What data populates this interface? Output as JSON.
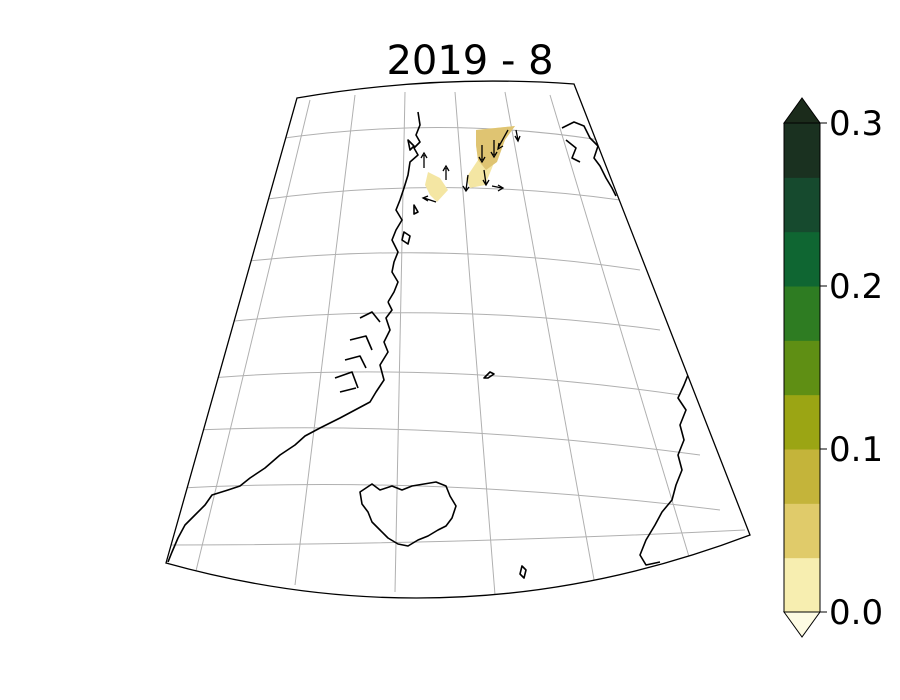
{
  "title": "2019 - 8",
  "colorbar": {
    "min": 0.0,
    "max": 0.3,
    "extend": "both",
    "tick_labels": [
      "0.0",
      "0.1",
      "0.2",
      "0.3"
    ],
    "tick_values": [
      0.0,
      0.1,
      0.2,
      0.3
    ],
    "levels": [
      0.0,
      0.033,
      0.067,
      0.1,
      0.133,
      0.167,
      0.2,
      0.233,
      0.267,
      0.3
    ],
    "colors": [
      "#f7eeb0",
      "#e0cb6a",
      "#c4b43a",
      "#9ba514",
      "#5f8f14",
      "#2e7c22",
      "#0f6632",
      "#164a2e",
      "#1a3120"
    ],
    "under_color": "#fdfbe3",
    "over_color": "#1b2b1b"
  },
  "map": {
    "projection": "conic",
    "region": "North Atlantic / Greenland – Iceland – Norway",
    "gridlines": true,
    "fill_color_low": "#f4e6a3",
    "fill_color_mid": "#dfc472"
  }
}
